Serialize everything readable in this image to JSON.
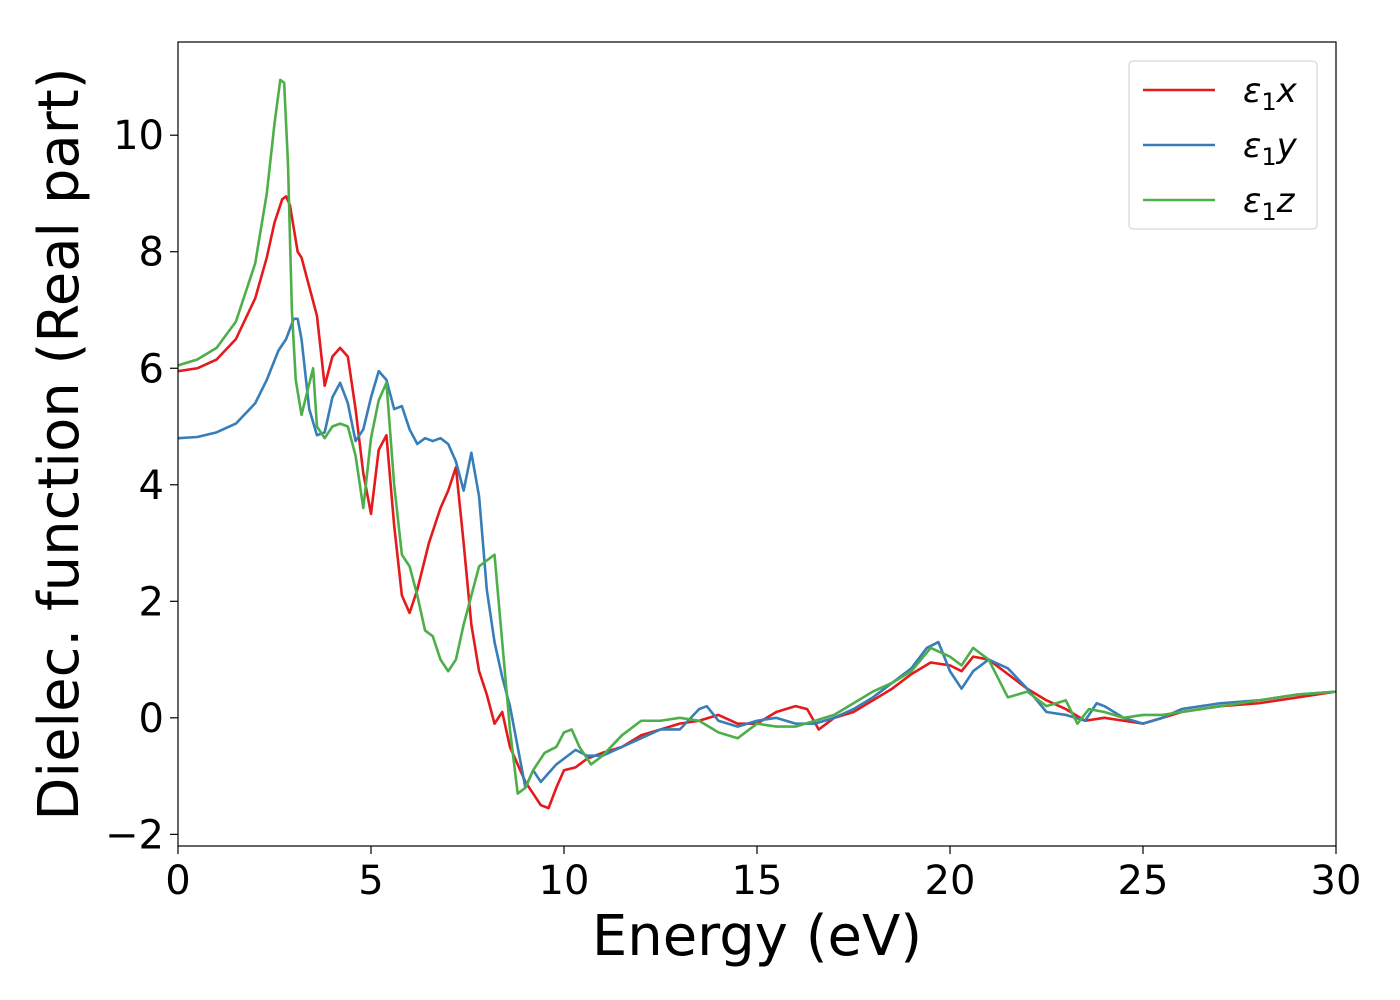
{
  "chart_data": {
    "type": "line",
    "title": "",
    "xlabel": "Energy (eV)",
    "ylabel": "Dielec. function (Real part)",
    "xlim": [
      0,
      30
    ],
    "ylim": [
      -2.2,
      11.6
    ],
    "xticks": [
      0,
      5,
      10,
      15,
      20,
      25,
      30
    ],
    "xtick_labels": [
      "0",
      "5",
      "10",
      "15",
      "20",
      "25",
      "30"
    ],
    "yticks": [
      -2,
      0,
      2,
      4,
      6,
      8,
      10
    ],
    "ytick_labels": [
      "−2",
      "0",
      "2",
      "4",
      "6",
      "8",
      "10"
    ],
    "grid": false,
    "legend": {
      "position": "top-right"
    },
    "series": [
      {
        "name": "ε₁x",
        "name_base": "ε",
        "name_sub": "1",
        "name_suffix": "x",
        "color": "#e41a1c",
        "x": [
          0,
          0.5,
          1.0,
          1.5,
          2.0,
          2.3,
          2.5,
          2.7,
          2.8,
          2.9,
          3.0,
          3.1,
          3.2,
          3.4,
          3.6,
          3.8,
          4.0,
          4.2,
          4.4,
          4.6,
          4.8,
          5.0,
          5.2,
          5.4,
          5.6,
          5.8,
          6.0,
          6.2,
          6.5,
          6.8,
          7.0,
          7.2,
          7.4,
          7.6,
          7.8,
          8.0,
          8.2,
          8.4,
          8.6,
          8.8,
          9.0,
          9.2,
          9.4,
          9.6,
          9.8,
          10.0,
          10.3,
          10.6,
          11.0,
          11.5,
          12.0,
          12.5,
          13.0,
          13.5,
          14.0,
          14.5,
          15.0,
          15.5,
          16.0,
          16.3,
          16.6,
          17.0,
          17.5,
          18.0,
          18.5,
          19.0,
          19.5,
          20.0,
          20.3,
          20.6,
          21.0,
          21.5,
          22.0,
          22.5,
          23.0,
          23.5,
          24.0,
          24.5,
          25.0,
          25.5,
          26.0,
          27.0,
          28.0,
          29.0,
          30.0
        ],
        "values": [
          5.95,
          6.0,
          6.15,
          6.5,
          7.2,
          7.9,
          8.5,
          8.9,
          8.95,
          8.8,
          8.4,
          8.0,
          7.9,
          7.4,
          6.9,
          5.7,
          6.2,
          6.35,
          6.2,
          5.3,
          4.2,
          3.5,
          4.6,
          4.85,
          3.3,
          2.1,
          1.8,
          2.2,
          3.0,
          3.6,
          3.9,
          4.3,
          3.0,
          1.6,
          0.8,
          0.4,
          -0.1,
          0.1,
          -0.5,
          -0.8,
          -1.1,
          -1.3,
          -1.5,
          -1.55,
          -1.2,
          -0.9,
          -0.85,
          -0.7,
          -0.6,
          -0.5,
          -0.3,
          -0.2,
          -0.1,
          -0.05,
          0.05,
          -0.1,
          -0.1,
          0.1,
          0.2,
          0.15,
          -0.2,
          0.0,
          0.1,
          0.3,
          0.5,
          0.75,
          0.95,
          0.9,
          0.8,
          1.05,
          1.0,
          0.75,
          0.5,
          0.3,
          0.15,
          -0.05,
          0.0,
          -0.05,
          -0.1,
          0.0,
          0.1,
          0.2,
          0.25,
          0.35,
          0.45
        ]
      },
      {
        "name": "ε₁y",
        "name_base": "ε",
        "name_sub": "1",
        "name_suffix": "y",
        "color": "#377eb8",
        "x": [
          0,
          0.5,
          1.0,
          1.5,
          2.0,
          2.3,
          2.6,
          2.8,
          3.0,
          3.1,
          3.2,
          3.4,
          3.6,
          3.8,
          4.0,
          4.2,
          4.4,
          4.6,
          4.8,
          5.0,
          5.2,
          5.4,
          5.6,
          5.8,
          6.0,
          6.2,
          6.4,
          6.6,
          6.8,
          7.0,
          7.2,
          7.4,
          7.6,
          7.8,
          8.0,
          8.2,
          8.4,
          8.6,
          8.8,
          9.0,
          9.2,
          9.4,
          9.6,
          9.8,
          10.0,
          10.3,
          10.6,
          11.0,
          11.5,
          12.0,
          12.5,
          13.0,
          13.5,
          13.7,
          14.0,
          14.5,
          15.0,
          15.5,
          16.0,
          16.5,
          17.0,
          17.5,
          18.0,
          18.5,
          19.0,
          19.4,
          19.7,
          20.0,
          20.3,
          20.6,
          21.0,
          21.5,
          22.0,
          22.5,
          23.0,
          23.5,
          23.8,
          24.0,
          24.5,
          25.0,
          25.5,
          26.0,
          27.0,
          28.0,
          29.0,
          30.0
        ],
        "values": [
          4.8,
          4.82,
          4.9,
          5.05,
          5.4,
          5.8,
          6.3,
          6.5,
          6.85,
          6.85,
          6.5,
          5.3,
          4.85,
          4.9,
          5.5,
          5.75,
          5.4,
          4.75,
          4.95,
          5.5,
          5.95,
          5.8,
          5.3,
          5.35,
          4.95,
          4.7,
          4.8,
          4.75,
          4.8,
          4.7,
          4.4,
          3.9,
          4.55,
          3.8,
          2.2,
          1.3,
          0.7,
          0.2,
          -0.5,
          -1.2,
          -0.9,
          -1.1,
          -0.95,
          -0.8,
          -0.7,
          -0.55,
          -0.65,
          -0.65,
          -0.5,
          -0.35,
          -0.2,
          -0.2,
          0.15,
          0.2,
          -0.05,
          -0.15,
          -0.05,
          0.0,
          -0.1,
          -0.1,
          0.0,
          0.15,
          0.35,
          0.6,
          0.85,
          1.2,
          1.3,
          0.8,
          0.5,
          0.8,
          1.0,
          0.85,
          0.5,
          0.1,
          0.05,
          -0.05,
          0.25,
          0.2,
          0.0,
          -0.1,
          0.0,
          0.15,
          0.25,
          0.3,
          0.4,
          0.45
        ]
      },
      {
        "name": "ε₁z",
        "name_base": "ε",
        "name_sub": "1",
        "name_suffix": "z",
        "color": "#4daf4a",
        "x": [
          0,
          0.5,
          1.0,
          1.5,
          2.0,
          2.3,
          2.5,
          2.65,
          2.75,
          2.85,
          2.95,
          3.05,
          3.2,
          3.35,
          3.5,
          3.6,
          3.8,
          4.0,
          4.2,
          4.4,
          4.6,
          4.8,
          5.0,
          5.2,
          5.4,
          5.6,
          5.8,
          6.0,
          6.2,
          6.4,
          6.6,
          6.8,
          7.0,
          7.2,
          7.4,
          7.6,
          7.8,
          8.0,
          8.2,
          8.4,
          8.6,
          8.8,
          9.0,
          9.2,
          9.5,
          9.8,
          10.0,
          10.2,
          10.4,
          10.7,
          11.0,
          11.5,
          12.0,
          12.5,
          13.0,
          13.5,
          14.0,
          14.5,
          15.0,
          15.5,
          16.0,
          16.5,
          17.0,
          17.5,
          18.0,
          18.5,
          19.0,
          19.5,
          20.0,
          20.3,
          20.6,
          21.0,
          21.5,
          22.0,
          22.5,
          23.0,
          23.3,
          23.6,
          24.0,
          24.5,
          25.0,
          25.5,
          26.0,
          27.0,
          28.0,
          29.0,
          30.0
        ],
        "values": [
          6.05,
          6.15,
          6.35,
          6.8,
          7.8,
          9.0,
          10.2,
          10.95,
          10.9,
          9.5,
          7.0,
          5.8,
          5.2,
          5.6,
          6.0,
          5.0,
          4.8,
          5.0,
          5.05,
          5.0,
          4.5,
          3.6,
          4.8,
          5.45,
          5.75,
          4.0,
          2.8,
          2.6,
          2.1,
          1.5,
          1.4,
          1.0,
          0.8,
          1.0,
          1.6,
          2.1,
          2.6,
          2.7,
          2.8,
          1.3,
          -0.2,
          -1.3,
          -1.2,
          -0.9,
          -0.6,
          -0.5,
          -0.25,
          -0.2,
          -0.5,
          -0.8,
          -0.65,
          -0.3,
          -0.05,
          -0.05,
          0.0,
          -0.05,
          -0.25,
          -0.35,
          -0.1,
          -0.15,
          -0.15,
          -0.05,
          0.05,
          0.25,
          0.45,
          0.6,
          0.8,
          1.2,
          1.05,
          0.9,
          1.2,
          1.0,
          0.35,
          0.45,
          0.2,
          0.3,
          -0.1,
          0.15,
          0.1,
          0.0,
          0.05,
          0.05,
          0.1,
          0.2,
          0.3,
          0.4,
          0.45
        ]
      }
    ]
  }
}
